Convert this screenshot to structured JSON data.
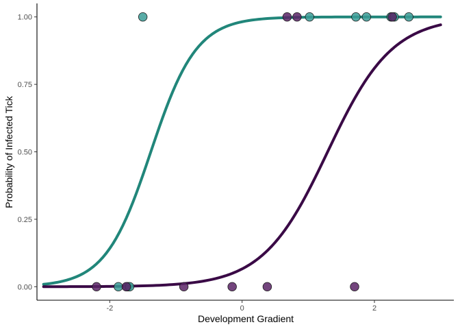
{
  "chart_data": {
    "type": "scatter",
    "xlabel": "Development Gradient",
    "ylabel": "Probability of Infected Tick",
    "xlim": [
      -3.1,
      3.2
    ],
    "ylim": [
      -0.05,
      1.05
    ],
    "x_ticks": [
      -2,
      0,
      2
    ],
    "x_tick_labels": [
      "-2",
      "0",
      "2"
    ],
    "y_ticks": [
      0,
      0.25,
      0.5,
      0.75,
      1
    ],
    "y_tick_labels": [
      "0.00",
      "0.25",
      "0.50",
      "0.75",
      "1.00"
    ],
    "grid": false,
    "legend": "none",
    "series": [
      {
        "color": "#21867a",
        "point_fill": "#3b9c96",
        "curve": {
          "intercept": 4.0,
          "slope": 2.9,
          "x_range": [
            -3,
            3
          ]
        },
        "points": [
          {
            "x": -1.5,
            "y": 1
          },
          {
            "x": 1.02,
            "y": 1
          },
          {
            "x": 1.72,
            "y": 1
          },
          {
            "x": 1.88,
            "y": 1
          },
          {
            "x": 2.25,
            "y": 1
          },
          {
            "x": 2.3,
            "y": 1
          },
          {
            "x": 2.52,
            "y": 1
          },
          {
            "x": -1.87,
            "y": 0
          },
          {
            "x": -1.73,
            "y": 0
          },
          {
            "x": -1.7,
            "y": 0
          }
        ]
      },
      {
        "color": "#3a0a46",
        "point_fill": "#5a2466",
        "curve": {
          "intercept": -2.65,
          "slope": 2.05,
          "x_range": [
            -3,
            3
          ]
        },
        "points": [
          {
            "x": 0.68,
            "y": 1
          },
          {
            "x": 0.83,
            "y": 1
          },
          {
            "x": 2.27,
            "y": 1
          },
          {
            "x": -2.2,
            "y": 0
          },
          {
            "x": -1.75,
            "y": 0
          },
          {
            "x": -0.88,
            "y": 0
          },
          {
            "x": -0.15,
            "y": 0
          },
          {
            "x": 0.38,
            "y": 0
          },
          {
            "x": 1.7,
            "y": 0
          }
        ]
      }
    ]
  }
}
